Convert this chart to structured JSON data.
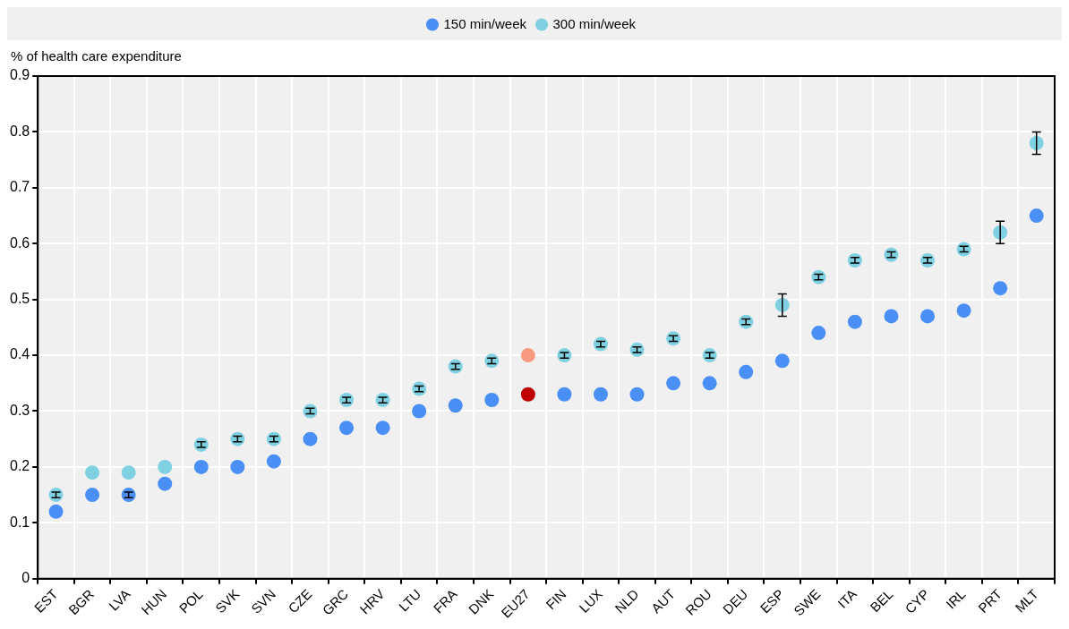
{
  "chart_data": {
    "type": "scatter",
    "ylabel": "% of health care expenditure",
    "categories": [
      "EST",
      "BGR",
      "LVA",
      "HUN",
      "POL",
      "SVK",
      "SVN",
      "CZE",
      "GRC",
      "HRV",
      "LTU",
      "FRA",
      "DNK",
      "EU27",
      "FIN",
      "LUX",
      "NLD",
      "AUT",
      "ROU",
      "DEU",
      "ESP",
      "SWE",
      "ITA",
      "BEL",
      "CYP",
      "IRL",
      "PRT",
      "MLT"
    ],
    "series": [
      {
        "name": "150 min/week",
        "color": "#4a8ff5",
        "colors": [
          "#4a8ff5",
          "#4a8ff5",
          "#4a8ff5",
          "#4a8ff5",
          "#4a8ff5",
          "#4a8ff5",
          "#4a8ff5",
          "#4a8ff5",
          "#4a8ff5",
          "#4a8ff5",
          "#4a8ff5",
          "#4a8ff5",
          "#4a8ff5",
          "#c00000",
          "#4a8ff5",
          "#4a8ff5",
          "#4a8ff5",
          "#4a8ff5",
          "#4a8ff5",
          "#4a8ff5",
          "#4a8ff5",
          "#4a8ff5",
          "#4a8ff5",
          "#4a8ff5",
          "#4a8ff5",
          "#4a8ff5",
          "#4a8ff5",
          "#4a8ff5"
        ],
        "values": [
          0.12,
          0.15,
          0.15,
          0.17,
          0.2,
          0.2,
          0.21,
          0.25,
          0.27,
          0.27,
          0.3,
          0.31,
          0.32,
          0.33,
          0.33,
          0.33,
          0.33,
          0.35,
          0.35,
          0.37,
          0.39,
          0.44,
          0.46,
          0.47,
          0.47,
          0.48,
          0.52,
          0.65
        ],
        "errors": [
          null,
          null,
          0.005,
          null,
          null,
          null,
          null,
          null,
          null,
          null,
          null,
          null,
          null,
          null,
          null,
          null,
          null,
          null,
          null,
          null,
          null,
          null,
          null,
          null,
          null,
          null,
          null,
          null
        ]
      },
      {
        "name": "300 min/week",
        "color": "#7fd1e2",
        "colors": [
          "#7fd1e2",
          "#7fd1e2",
          "#7fd1e2",
          "#7fd1e2",
          "#7fd1e2",
          "#7fd1e2",
          "#7fd1e2",
          "#7fd1e2",
          "#7fd1e2",
          "#7fd1e2",
          "#7fd1e2",
          "#7fd1e2",
          "#7fd1e2",
          "#f79a7f",
          "#7fd1e2",
          "#7fd1e2",
          "#7fd1e2",
          "#7fd1e2",
          "#7fd1e2",
          "#7fd1e2",
          "#7fd1e2",
          "#7fd1e2",
          "#7fd1e2",
          "#7fd1e2",
          "#7fd1e2",
          "#7fd1e2",
          "#7fd1e2",
          "#7fd1e2"
        ],
        "values": [
          0.15,
          0.19,
          0.19,
          0.2,
          0.24,
          0.25,
          0.25,
          0.3,
          0.32,
          0.32,
          0.34,
          0.38,
          0.39,
          0.4,
          0.4,
          0.42,
          0.41,
          0.43,
          0.4,
          0.46,
          0.49,
          0.54,
          0.57,
          0.58,
          0.57,
          0.59,
          0.62,
          0.78
        ],
        "errors": [
          0.005,
          null,
          null,
          null,
          0.005,
          0.005,
          0.005,
          0.005,
          0.005,
          0.005,
          0.005,
          0.005,
          0.005,
          null,
          0.005,
          0.005,
          0.005,
          0.005,
          0.005,
          0.005,
          0.02,
          0.005,
          0.005,
          0.005,
          0.005,
          0.005,
          0.02,
          0.02
        ]
      }
    ],
    "ylim": [
      0,
      0.9
    ],
    "yticks": [
      0,
      0.1,
      0.2,
      0.3,
      0.4,
      0.5,
      0.6,
      0.7,
      0.8,
      0.9
    ],
    "grid": true,
    "legend": "top",
    "marker": "circle"
  }
}
